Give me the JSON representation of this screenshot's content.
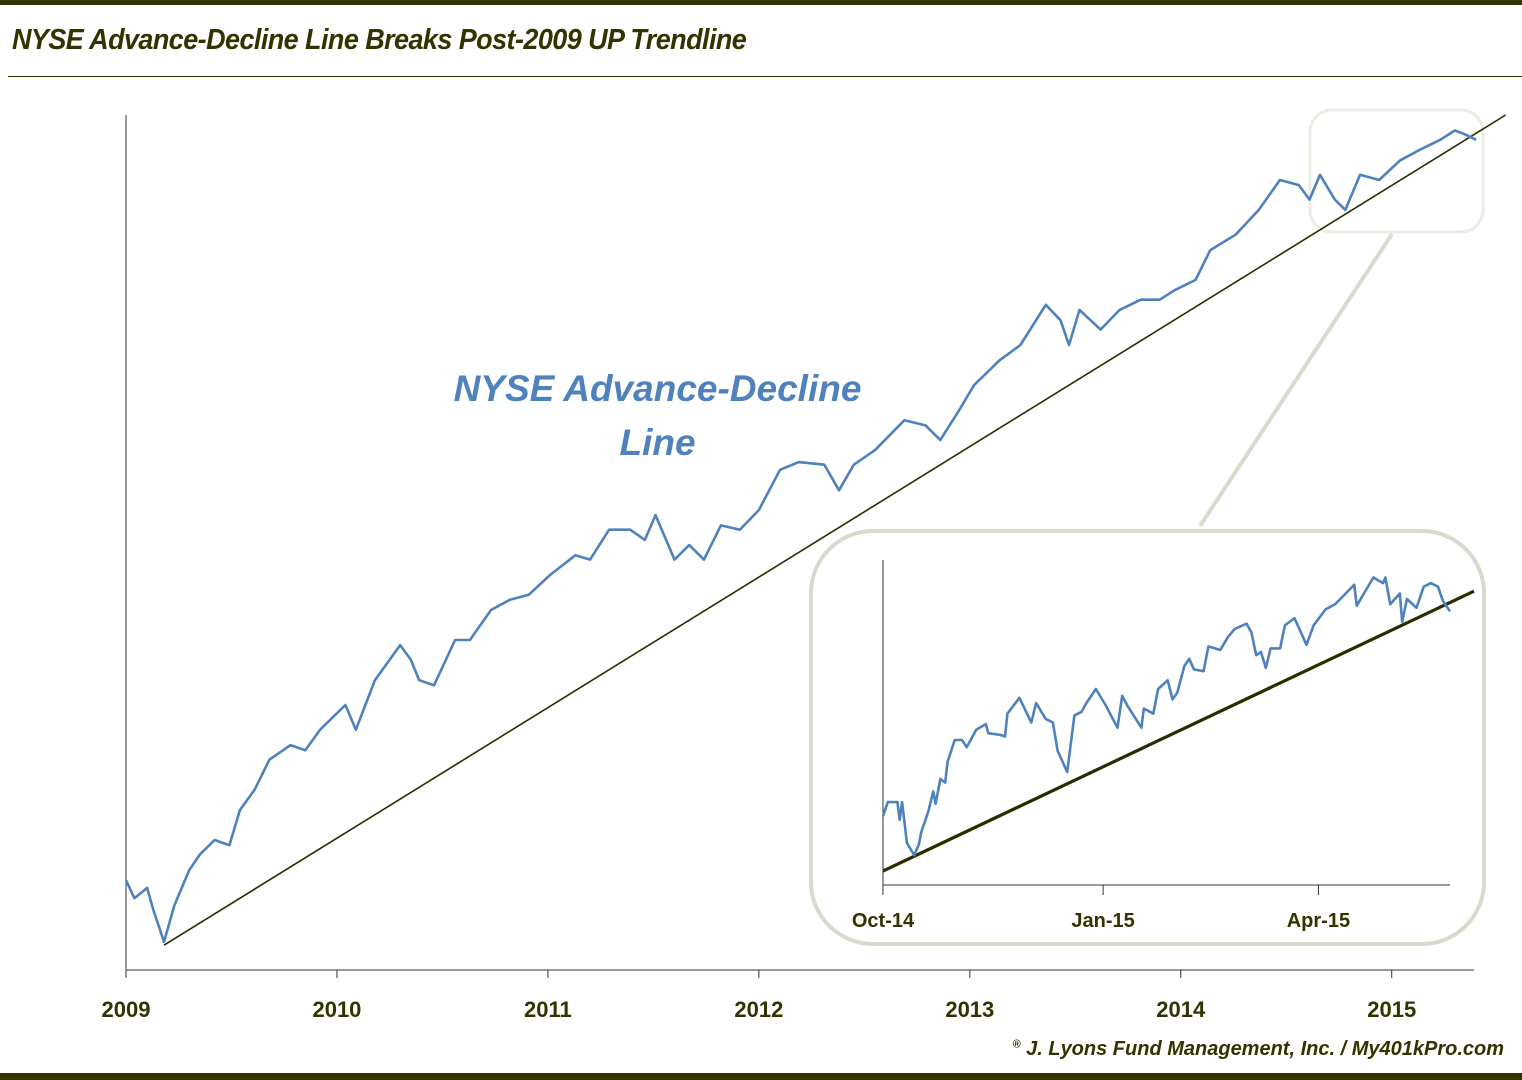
{
  "title": "NYSE Advance-Decline Line Breaks Post-2009 UP Trendline",
  "credit": {
    "symbol": "®",
    "text": "J. Lyons Fund Management, Inc. / My401kPro.com"
  },
  "colors": {
    "series": "#4f81bd",
    "trendline": "#2b2b00",
    "text": "#333300",
    "callout": "#d9d9cc"
  },
  "chart_data": [
    {
      "type": "line",
      "title": "",
      "annotation": "NYSE Advance-Decline Line",
      "xlabel": "",
      "ylabel": "",
      "x_tick_labels": [
        "2009",
        "2010",
        "2011",
        "2012",
        "2013",
        "2014",
        "2015"
      ],
      "xlim": [
        2009,
        2015.39
      ],
      "ylim": [
        0,
        100
      ],
      "y_axis_labels_shown": false,
      "grid": false,
      "series": [
        {
          "color": "#4f81bd",
          "points": [
            [
              2009.0,
              10.5
            ],
            [
              2009.04,
              8.4
            ],
            [
              2009.1,
              9.6
            ],
            [
              2009.13,
              7.0
            ],
            [
              2009.18,
              3.3
            ],
            [
              2009.23,
              7.6
            ],
            [
              2009.3,
              11.7
            ],
            [
              2009.35,
              13.5
            ],
            [
              2009.42,
              15.2
            ],
            [
              2009.49,
              14.6
            ],
            [
              2009.54,
              18.7
            ],
            [
              2009.61,
              21.1
            ],
            [
              2009.68,
              24.6
            ],
            [
              2009.78,
              26.3
            ],
            [
              2009.85,
              25.7
            ],
            [
              2009.92,
              28.1
            ],
            [
              2010.04,
              31.0
            ],
            [
              2010.09,
              28.1
            ],
            [
              2010.18,
              33.9
            ],
            [
              2010.3,
              38.0
            ],
            [
              2010.35,
              36.3
            ],
            [
              2010.39,
              33.9
            ],
            [
              2010.46,
              33.3
            ],
            [
              2010.56,
              38.6
            ],
            [
              2010.63,
              38.6
            ],
            [
              2010.73,
              42.1
            ],
            [
              2010.82,
              43.3
            ],
            [
              2010.91,
              43.9
            ],
            [
              2011.01,
              46.2
            ],
            [
              2011.13,
              48.5
            ],
            [
              2011.2,
              48.0
            ],
            [
              2011.29,
              51.5
            ],
            [
              2011.39,
              51.5
            ],
            [
              2011.46,
              50.3
            ],
            [
              2011.51,
              53.2
            ],
            [
              2011.55,
              50.9
            ],
            [
              2011.6,
              48.0
            ],
            [
              2011.67,
              49.7
            ],
            [
              2011.74,
              48.0
            ],
            [
              2011.82,
              52.0
            ],
            [
              2011.91,
              51.5
            ],
            [
              2012.0,
              53.8
            ],
            [
              2012.1,
              58.5
            ],
            [
              2012.19,
              59.4
            ],
            [
              2012.31,
              59.1
            ],
            [
              2012.38,
              56.1
            ],
            [
              2012.45,
              59.1
            ],
            [
              2012.55,
              60.8
            ],
            [
              2012.69,
              64.3
            ],
            [
              2012.79,
              63.7
            ],
            [
              2012.86,
              62.0
            ],
            [
              2012.95,
              65.5
            ],
            [
              2013.02,
              68.4
            ],
            [
              2013.14,
              71.3
            ],
            [
              2013.24,
              73.1
            ],
            [
              2013.36,
              77.8
            ],
            [
              2013.43,
              76.0
            ],
            [
              2013.47,
              73.1
            ],
            [
              2013.52,
              77.2
            ],
            [
              2013.62,
              74.9
            ],
            [
              2013.71,
              77.2
            ],
            [
              2013.81,
              78.4
            ],
            [
              2013.9,
              78.4
            ],
            [
              2013.97,
              79.5
            ],
            [
              2014.07,
              80.7
            ],
            [
              2014.14,
              84.2
            ],
            [
              2014.26,
              86.0
            ],
            [
              2014.37,
              88.9
            ],
            [
              2014.47,
              92.4
            ],
            [
              2014.56,
              91.8
            ],
            [
              2014.61,
              90.1
            ],
            [
              2014.66,
              93.0
            ],
            [
              2014.73,
              90.1
            ],
            [
              2014.78,
              88.9
            ],
            [
              2014.85,
              93.0
            ],
            [
              2014.94,
              92.4
            ],
            [
              2015.04,
              94.7
            ],
            [
              2015.13,
              95.9
            ],
            [
              2015.23,
              97.1
            ],
            [
              2015.3,
              98.2
            ],
            [
              2015.35,
              97.7
            ],
            [
              2015.4,
              97.1
            ]
          ]
        }
      ],
      "trendline": {
        "color": "#2b2b00",
        "points": [
          [
            2009.18,
            2.9
          ],
          [
            2015.54,
            100
          ]
        ]
      }
    },
    {
      "type": "line",
      "title": "",
      "xlabel": "",
      "ylabel": "",
      "x_tick_labels": [
        "Oct-14",
        "Jan-15",
        "Apr-15"
      ],
      "x_ticks": [
        "2014-10-01",
        "2015-01-01",
        "2015-04-01"
      ],
      "xlim": [
        "2014-10-01",
        "2015-05-26"
      ],
      "ylim": [
        0,
        100
      ],
      "y_axis_labels_shown": false,
      "grid": false,
      "series": [
        {
          "color": "#4f81bd",
          "points": [
            [
              "2014-10-01",
              21.2
            ],
            [
              "2014-10-03",
              25.5
            ],
            [
              "2014-10-07",
              25.5
            ],
            [
              "2014-10-08",
              20.1
            ],
            [
              "2014-10-09",
              25.5
            ],
            [
              "2014-10-11",
              13.0
            ],
            [
              "2014-10-14",
              9.2
            ],
            [
              "2014-10-16",
              12.5
            ],
            [
              "2014-10-17",
              16.3
            ],
            [
              "2014-10-20",
              22.8
            ],
            [
              "2014-10-22",
              28.8
            ],
            [
              "2014-10-23",
              25.0
            ],
            [
              "2014-10-25",
              32.6
            ],
            [
              "2014-10-27",
              31.5
            ],
            [
              "2014-10-28",
              38.0
            ],
            [
              "2014-10-31",
              44.6
            ],
            [
              "2014-11-03",
              44.6
            ],
            [
              "2014-11-05",
              42.4
            ],
            [
              "2014-11-09",
              47.8
            ],
            [
              "2014-11-13",
              49.5
            ],
            [
              "2014-11-14",
              46.7
            ],
            [
              "2014-11-19",
              46.2
            ],
            [
              "2014-11-21",
              45.7
            ],
            [
              "2014-11-22",
              52.7
            ],
            [
              "2014-11-27",
              57.6
            ],
            [
              "2014-12-02",
              50.0
            ],
            [
              "2014-12-04",
              56.0
            ],
            [
              "2014-12-08",
              51.1
            ],
            [
              "2014-12-11",
              50.0
            ],
            [
              "2014-12-13",
              41.3
            ],
            [
              "2014-12-17",
              34.8
            ],
            [
              "2014-12-20",
              52.2
            ],
            [
              "2014-12-23",
              53.3
            ],
            [
              "2014-12-25",
              56.0
            ],
            [
              "2014-12-29",
              60.3
            ],
            [
              "2015-01-02",
              55.4
            ],
            [
              "2015-01-07",
              48.4
            ],
            [
              "2015-01-09",
              58.2
            ],
            [
              "2015-01-11",
              55.4
            ],
            [
              "2015-01-17",
              48.4
            ],
            [
              "2015-01-18",
              54.3
            ],
            [
              "2015-01-22",
              52.7
            ],
            [
              "2015-01-24",
              60.3
            ],
            [
              "2015-01-28",
              63.0
            ],
            [
              "2015-01-30",
              57.1
            ],
            [
              "2015-02-01",
              59.2
            ],
            [
              "2015-02-04",
              67.4
            ],
            [
              "2015-02-06",
              69.6
            ],
            [
              "2015-02-08",
              66.3
            ],
            [
              "2015-02-12",
              65.8
            ],
            [
              "2015-02-14",
              73.4
            ],
            [
              "2015-02-19",
              72.3
            ],
            [
              "2015-02-22",
              76.1
            ],
            [
              "2015-02-25",
              78.8
            ],
            [
              "2015-03-02",
              80.4
            ],
            [
              "2015-03-04",
              77.7
            ],
            [
              "2015-03-06",
              70.7
            ],
            [
              "2015-03-08",
              71.7
            ],
            [
              "2015-03-10",
              66.8
            ],
            [
              "2015-03-12",
              72.8
            ],
            [
              "2015-03-16",
              72.8
            ],
            [
              "2015-03-18",
              79.9
            ],
            [
              "2015-03-22",
              82.1
            ],
            [
              "2015-03-27",
              73.9
            ],
            [
              "2015-03-30",
              79.9
            ],
            [
              "2015-04-04",
              84.8
            ],
            [
              "2015-04-08",
              86.4
            ],
            [
              "2015-04-11",
              88.6
            ],
            [
              "2015-04-16",
              92.4
            ],
            [
              "2015-04-17",
              85.9
            ],
            [
              "2015-04-20",
              89.7
            ],
            [
              "2015-04-24",
              94.6
            ],
            [
              "2015-04-28",
              92.9
            ],
            [
              "2015-04-29",
              94.6
            ],
            [
              "2015-05-01",
              86.4
            ],
            [
              "2015-05-05",
              89.7
            ],
            [
              "2015-05-06",
              81.0
            ],
            [
              "2015-05-08",
              88.0
            ],
            [
              "2015-05-12",
              85.3
            ],
            [
              "2015-05-15",
              91.8
            ],
            [
              "2015-05-18",
              92.9
            ],
            [
              "2015-05-21",
              91.8
            ],
            [
              "2015-05-23",
              87.5
            ],
            [
              "2015-05-26",
              84.2
            ]
          ]
        }
      ],
      "trendline": {
        "color": "#2b2b00",
        "points": [
          [
            "2014-10-01",
            4.3
          ],
          [
            "2015-06-05",
            90.4
          ]
        ]
      }
    }
  ]
}
